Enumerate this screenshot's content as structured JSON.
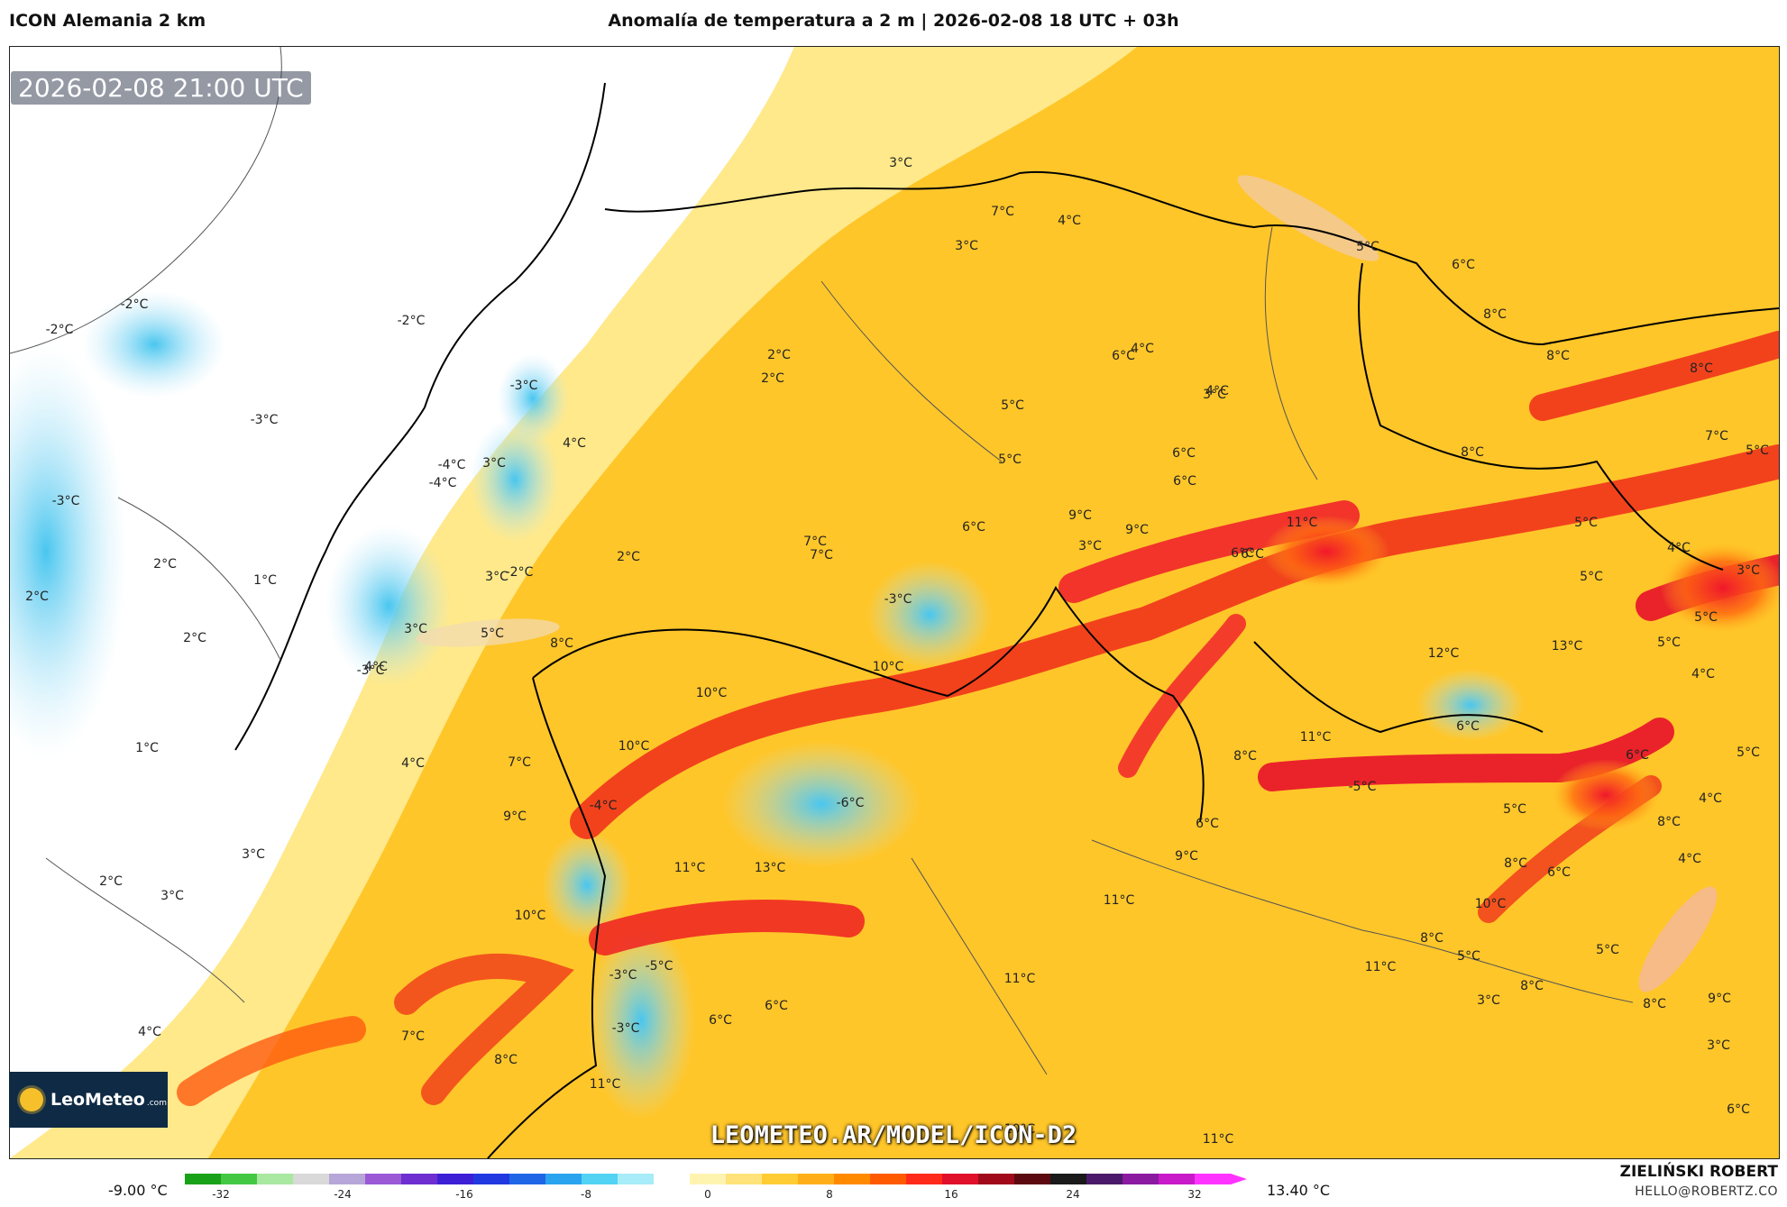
{
  "header": {
    "model": "ICON Alemania 2 km",
    "title": "Anomalía de temperatura a 2 m | 2026-02-08 18 UTC + 03h"
  },
  "map": {
    "timestamp": "2026-02-08 21:00 UTC",
    "watermark": "LEOMETEO.AR/MODEL/ICON-D2",
    "logo_brand": "LeoMeteo",
    "logo_tld": ".com",
    "labels": [
      {
        "text": "-2°C"
      },
      {
        "text": "-2°C"
      },
      {
        "text": "-2°C"
      },
      {
        "text": "-3°C"
      },
      {
        "text": "-3°C"
      },
      {
        "text": "-4°C"
      },
      {
        "text": "-3°C"
      },
      {
        "text": "2°C"
      },
      {
        "text": "1°C"
      },
      {
        "text": "2°C"
      },
      {
        "text": "2°C"
      },
      {
        "text": "1°C"
      },
      {
        "text": "3°C"
      },
      {
        "text": "2°C"
      },
      {
        "text": "4°C"
      },
      {
        "text": "3°C"
      },
      {
        "text": "3°C"
      },
      {
        "text": "-3°C"
      },
      {
        "text": "-4°C"
      },
      {
        "text": "3°C"
      },
      {
        "text": "-2°C"
      },
      {
        "text": "2°C"
      },
      {
        "text": "4°C"
      },
      {
        "text": "5°C"
      },
      {
        "text": "8°C"
      },
      {
        "text": "4°C"
      },
      {
        "text": "4°C"
      },
      {
        "text": "7°C"
      },
      {
        "text": "9°C"
      },
      {
        "text": "2°C"
      },
      {
        "text": "2°C"
      },
      {
        "text": "3°C"
      },
      {
        "text": "4°C"
      },
      {
        "text": "3°C"
      },
      {
        "text": "6°C"
      },
      {
        "text": "7°C"
      },
      {
        "text": "6°C"
      },
      {
        "text": "5°C"
      },
      {
        "text": "-3°C"
      },
      {
        "text": "10°C"
      },
      {
        "text": "10°C"
      },
      {
        "text": "10°C"
      },
      {
        "text": "-4°C"
      },
      {
        "text": "-6°C"
      },
      {
        "text": "11°C"
      },
      {
        "text": "13°C"
      },
      {
        "text": "7°C"
      },
      {
        "text": "10°C"
      },
      {
        "text": "7°C"
      },
      {
        "text": "8°C"
      },
      {
        "text": "-5°C"
      },
      {
        "text": "-3°C"
      },
      {
        "text": "-3°C"
      },
      {
        "text": "6°C"
      },
      {
        "text": "6°C"
      },
      {
        "text": "11°C"
      },
      {
        "text": "3°C"
      },
      {
        "text": "7°C"
      },
      {
        "text": "4°C"
      },
      {
        "text": "3°C"
      },
      {
        "text": "6°C"
      },
      {
        "text": "4°C"
      },
      {
        "text": "5°C"
      },
      {
        "text": "6°C"
      },
      {
        "text": "3°C"
      },
      {
        "text": "6°C"
      },
      {
        "text": "5°C"
      },
      {
        "text": "6°C"
      },
      {
        "text": "8°C"
      },
      {
        "text": "8°C"
      },
      {
        "text": "8°C"
      },
      {
        "text": "7°C"
      },
      {
        "text": "9°C"
      },
      {
        "text": "9°C"
      },
      {
        "text": "6°C"
      },
      {
        "text": "11°C"
      },
      {
        "text": "8°C"
      },
      {
        "text": "5°C"
      },
      {
        "text": "5°C"
      },
      {
        "text": "5°C"
      },
      {
        "text": "5°C"
      },
      {
        "text": "4°C"
      },
      {
        "text": "5°C"
      },
      {
        "text": "3°C"
      },
      {
        "text": "4°C"
      },
      {
        "text": "5°C"
      },
      {
        "text": "4°C"
      },
      {
        "text": "4°C"
      },
      {
        "text": "6°C"
      },
      {
        "text": "6°C"
      },
      {
        "text": "5°C"
      },
      {
        "text": "5°C"
      },
      {
        "text": "8°C"
      },
      {
        "text": "11°C"
      },
      {
        "text": "8°C"
      },
      {
        "text": "6°C"
      },
      {
        "text": "9°C"
      },
      {
        "text": "11°C"
      },
      {
        "text": "11°C"
      },
      {
        "text": "10°C"
      },
      {
        "text": "11°C"
      },
      {
        "text": "11°C"
      },
      {
        "text": "-5°C"
      },
      {
        "text": "8°C"
      },
      {
        "text": "12°C"
      },
      {
        "text": "13°C"
      },
      {
        "text": "6°C"
      },
      {
        "text": "10°C"
      },
      {
        "text": "8°C"
      },
      {
        "text": "5°C"
      },
      {
        "text": "8°C"
      },
      {
        "text": "6°C"
      },
      {
        "text": "9°C"
      },
      {
        "text": "8°C"
      },
      {
        "text": "3°C"
      },
      {
        "text": "3°C"
      }
    ]
  },
  "colorbar": {
    "min_label": "-9.00 °C",
    "max_label": "13.40 °C",
    "ticks": [
      "-32",
      "-24",
      "-16",
      "-8",
      "0",
      "8",
      "16",
      "24",
      "32"
    ],
    "colors": [
      "#1aa11a",
      "#44c844",
      "#a8e8a0",
      "#d9d9d9",
      "#b7a6d8",
      "#9b59d6",
      "#6f2ed0",
      "#3d1fd6",
      "#2038e0",
      "#1f66e6",
      "#2aa4ee",
      "#52d3f4",
      "#a7ecf8",
      "#ffffff",
      "#fff3b0",
      "#ffe27a",
      "#ffcc33",
      "#ffae1a",
      "#ff8a00",
      "#ff5a00",
      "#ff2a1a",
      "#e0102a",
      "#a00a1a",
      "#5c0810",
      "#1a1a1a",
      "#4a1a6a",
      "#8a1aa0",
      "#c81ac8",
      "#ff33ff"
    ]
  },
  "footer": {
    "author": "ZIELIŃSKI ROBERT",
    "email": "HELLO@ROBERTZ.CO"
  }
}
